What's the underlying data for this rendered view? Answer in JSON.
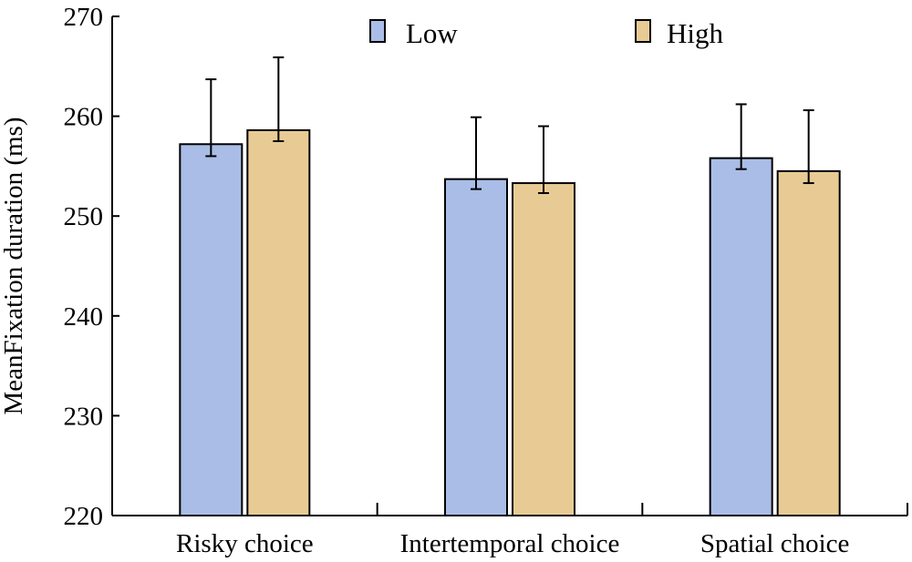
{
  "chart_data": {
    "type": "bar",
    "title": "",
    "xlabel": "",
    "ylabel": "MeanFixation duration (ms)",
    "ylim": [
      220,
      270
    ],
    "yticks": [
      220,
      230,
      240,
      250,
      260,
      270
    ],
    "grid": false,
    "legend_position": "top-center",
    "categories": [
      "Risky choice",
      "Intertemporal choice",
      "Spatial choice"
    ],
    "series": [
      {
        "name": "Low",
        "color": "#aabde6",
        "values": [
          257.2,
          253.7,
          255.8
        ],
        "error_upper": [
          263.7,
          259.9,
          261.2
        ],
        "error_lower": [
          256.0,
          252.7,
          254.7
        ]
      },
      {
        "name": "High",
        "color": "#e8cb94",
        "values": [
          258.6,
          253.3,
          254.5
        ],
        "error_upper": [
          265.9,
          259.0,
          260.6
        ],
        "error_lower": [
          257.5,
          252.3,
          253.3
        ]
      }
    ]
  }
}
